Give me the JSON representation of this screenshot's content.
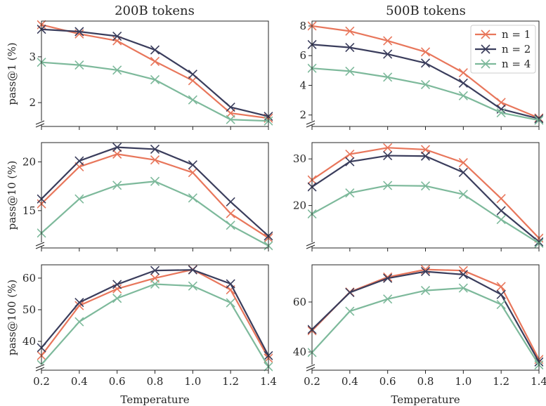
{
  "chart_data": {
    "type": "line",
    "x": [
      0.2,
      0.4,
      0.6,
      0.8,
      1.0,
      1.2,
      1.4
    ],
    "xlabel": "Temperature",
    "xticks": [
      "0.2",
      "0.4",
      "0.6",
      "0.8",
      "1.0",
      "1.2",
      "1.4"
    ],
    "colors": {
      "n = 1": "#e8765b",
      "n = 2": "#3a3d5c",
      "n = 4": "#7db99b"
    },
    "legend": {
      "entries": [
        "n = 1",
        "n = 2",
        "n = 4"
      ],
      "placement": "top-right",
      "panel": 1
    },
    "column_titles": [
      "200B tokens",
      "500B tokens"
    ],
    "panels": [
      {
        "id": "pass1-200b",
        "title": "200B tokens",
        "ylabel": "pass@1 (%)",
        "ylim": [
          1.48,
          3.78
        ],
        "yticks": [
          2,
          3
        ],
        "series": [
          {
            "name": "n = 1",
            "values": [
              3.7,
              3.5,
              3.35,
              2.9,
              2.48,
              1.77,
              1.66
            ]
          },
          {
            "name": "n = 2",
            "values": [
              3.6,
              3.55,
              3.45,
              3.15,
              2.62,
              1.9,
              1.7
            ]
          },
          {
            "name": "n = 4",
            "values": [
              2.88,
              2.82,
              2.71,
              2.5,
              2.06,
              1.63,
              1.6
            ]
          }
        ]
      },
      {
        "id": "pass1-500b",
        "title": "500B tokens",
        "ylabel": "",
        "ylim": [
          1.23,
          8.33
        ],
        "yticks": [
          2,
          4,
          6,
          8
        ],
        "series": [
          {
            "name": "n = 1",
            "values": [
              8.0,
              7.65,
              7.0,
              6.25,
              4.85,
              2.85,
              1.8
            ]
          },
          {
            "name": "n = 2",
            "values": [
              6.75,
              6.55,
              6.1,
              5.5,
              4.15,
              2.4,
              1.75
            ]
          },
          {
            "name": "n = 4",
            "values": [
              5.15,
              4.95,
              4.55,
              4.05,
              3.3,
              2.15,
              1.65
            ]
          }
        ]
      },
      {
        "id": "pass10-200b",
        "title": "",
        "ylabel": "pass@10 (%)",
        "ylim": [
          11.17,
          21.98
        ],
        "yticks": [
          15,
          20
        ],
        "series": [
          {
            "name": "n = 1",
            "values": [
              15.7,
              19.5,
              20.8,
              20.2,
              18.9,
              14.7,
              12.2
            ]
          },
          {
            "name": "n = 2",
            "values": [
              16.2,
              20.1,
              21.5,
              21.3,
              19.7,
              15.9,
              12.4
            ]
          },
          {
            "name": "n = 4",
            "values": [
              12.7,
              16.2,
              17.6,
              18.0,
              16.3,
              13.5,
              11.4
            ]
          }
        ]
      },
      {
        "id": "pass10-500b",
        "title": "",
        "ylabel": "",
        "ylim": [
          10.9,
          33.5
        ],
        "yticks": [
          20,
          30
        ],
        "series": [
          {
            "name": "n = 1",
            "values": [
              25.5,
              31.0,
              32.4,
              32.0,
              29.2,
              21.5,
              13.0
            ]
          },
          {
            "name": "n = 2",
            "values": [
              24.0,
              29.4,
              30.7,
              30.6,
              27.1,
              18.9,
              12.2
            ]
          },
          {
            "name": "n = 4",
            "values": [
              18.2,
              22.7,
              24.3,
              24.2,
              22.4,
              17.0,
              11.9
            ]
          }
        ]
      },
      {
        "id": "pass100-200b",
        "title": "",
        "ylabel": "pass@100 (%)",
        "ylim": [
          30.9,
          64.2
        ],
        "yticks": [
          40,
          50,
          60
        ],
        "series": [
          {
            "name": "n = 1",
            "values": [
              35.5,
              51.3,
              56.6,
              60.0,
              62.7,
              56.3,
              34.7
            ]
          },
          {
            "name": "n = 2",
            "values": [
              38.0,
              52.3,
              58.0,
              62.4,
              62.6,
              58.2,
              35.5
            ]
          },
          {
            "name": "n = 4",
            "values": [
              32.7,
              46.2,
              53.6,
              58.1,
              57.5,
              52.2,
              32.0
            ]
          }
        ]
      },
      {
        "id": "pass100-500b",
        "title": "",
        "ylabel": "",
        "ylim": [
          32.7,
          74.9
        ],
        "yticks": [
          40,
          60
        ],
        "series": [
          {
            "name": "n = 1",
            "values": [
              48.5,
              64.0,
              70.0,
              73.0,
              72.6,
              66.2,
              37.0
            ]
          },
          {
            "name": "n = 2",
            "values": [
              49.0,
              63.8,
              69.5,
              72.2,
              71.0,
              63.0,
              36.0
            ]
          },
          {
            "name": "n = 4",
            "values": [
              39.8,
              56.3,
              61.2,
              64.6,
              65.6,
              59.0,
              34.8
            ]
          }
        ]
      }
    ]
  }
}
